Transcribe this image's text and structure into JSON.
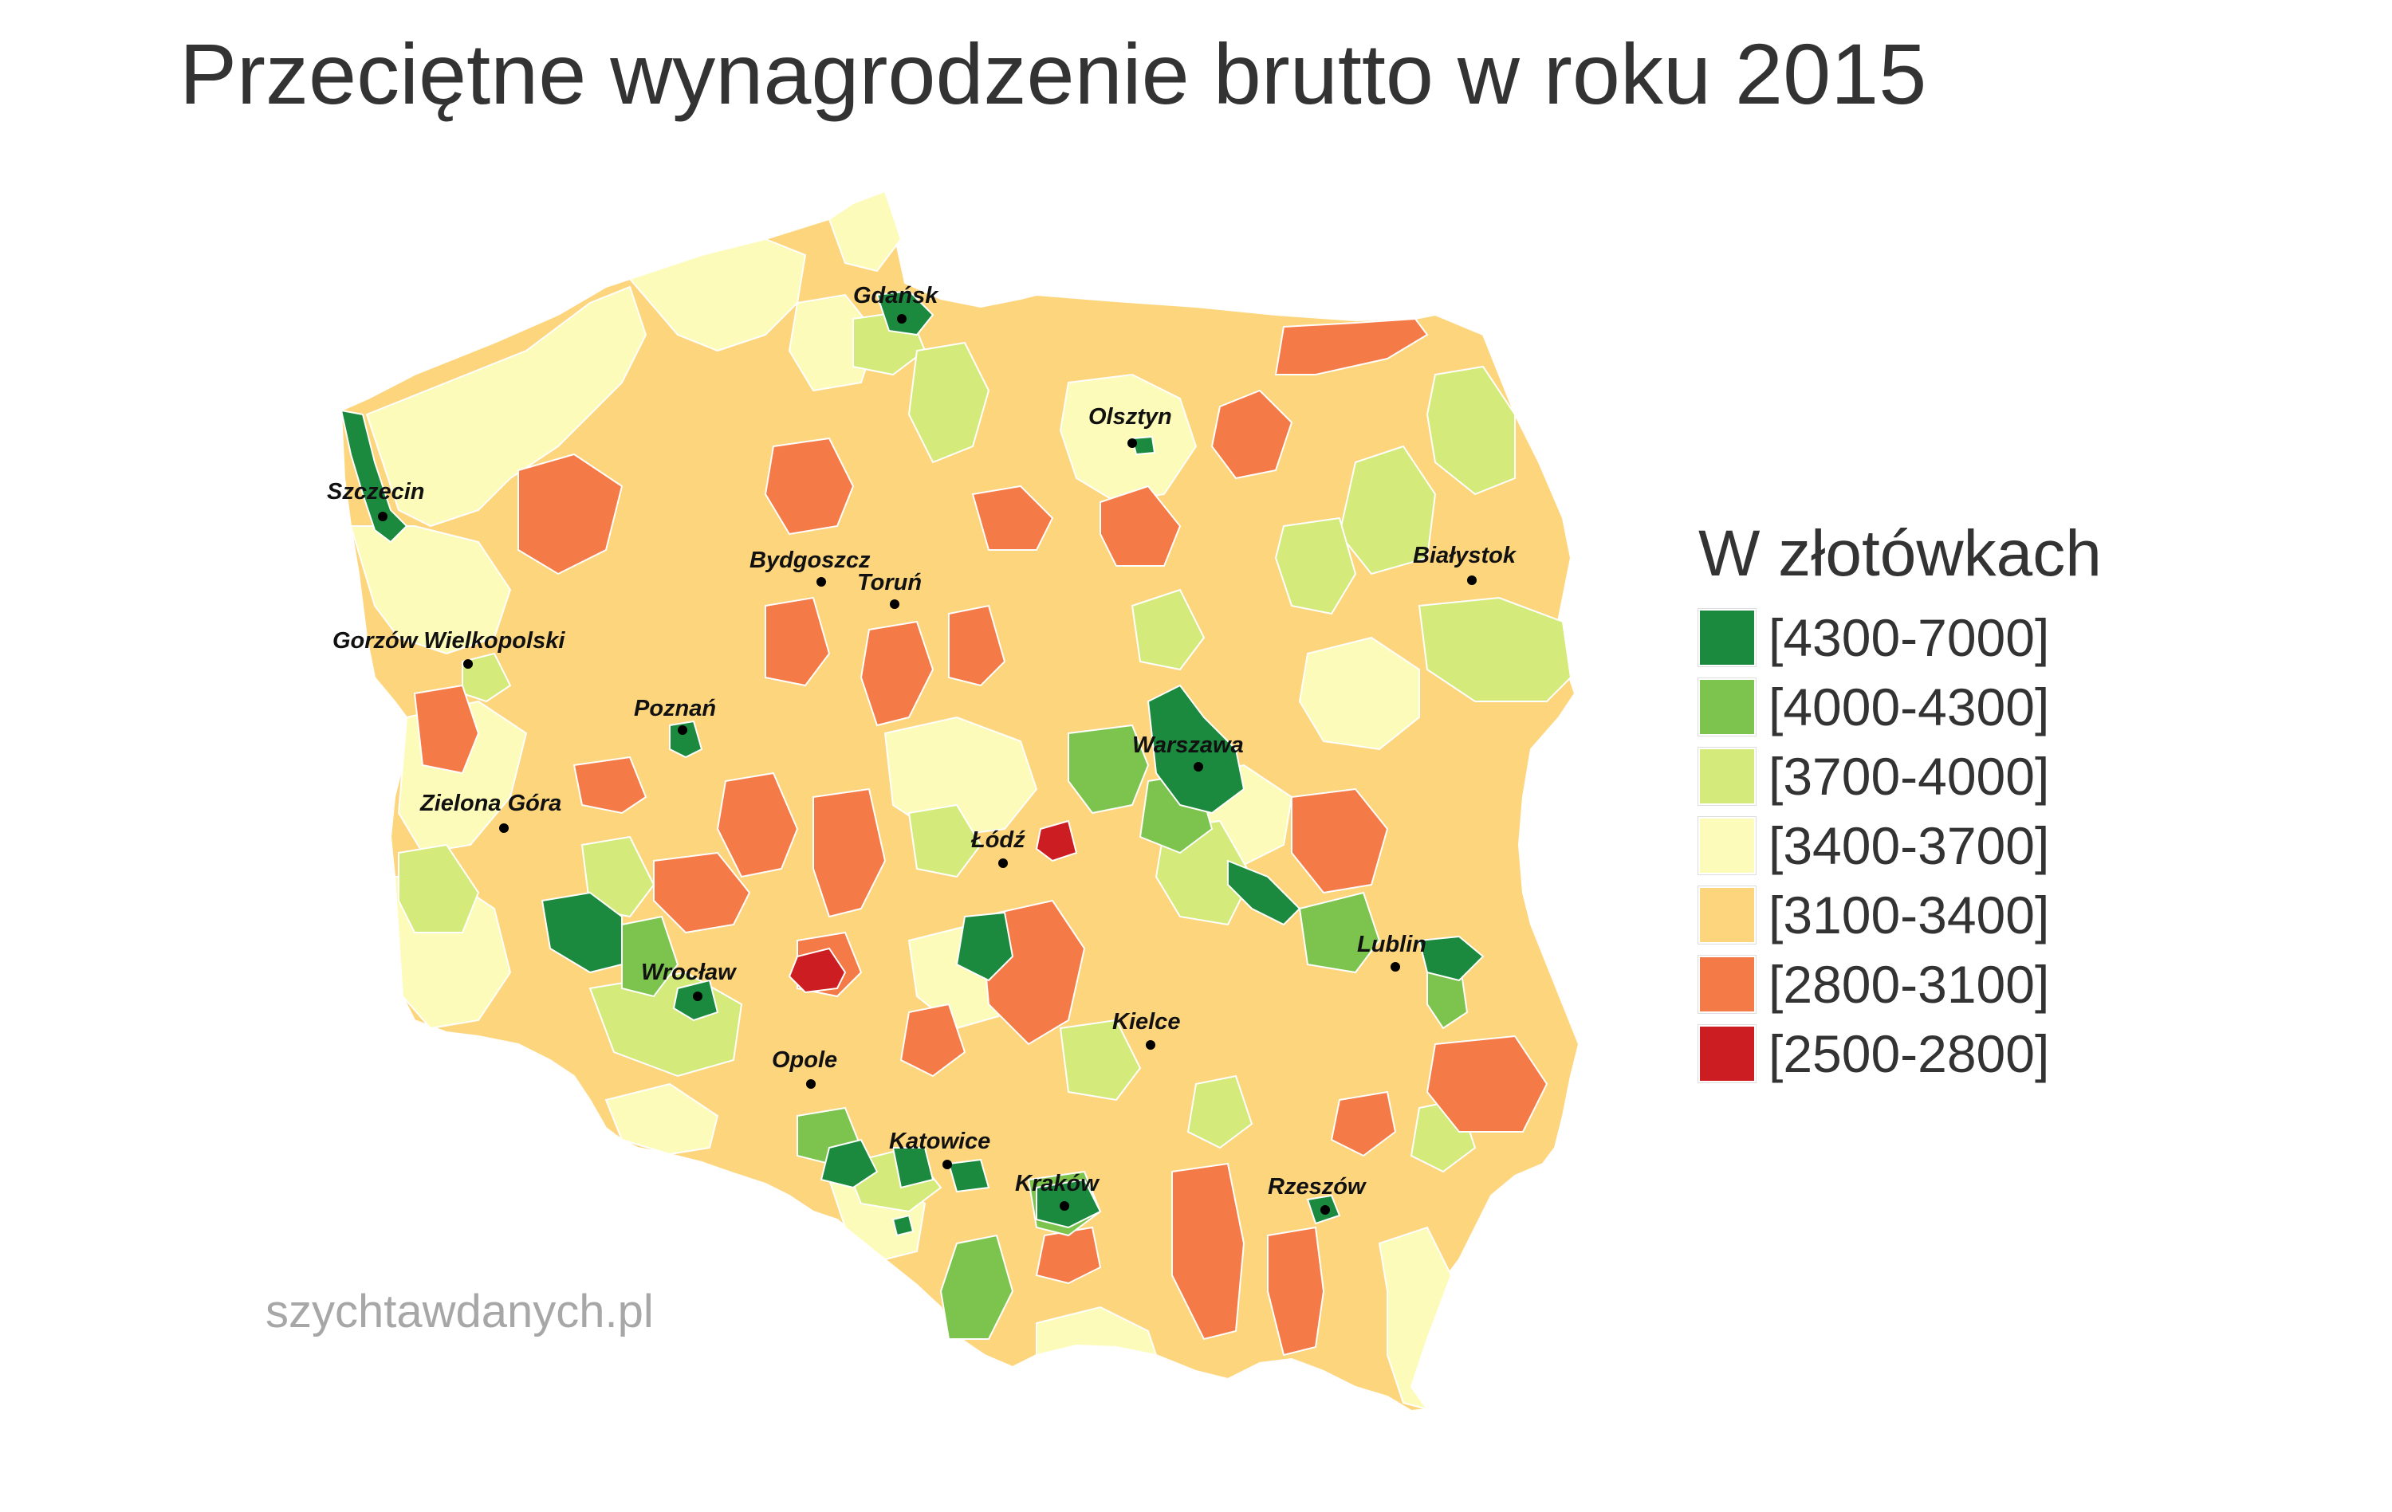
{
  "title": "Przeciętne wynagrodzenie brutto w roku 2015",
  "watermark": "szychtawdanych.pl",
  "legend": {
    "title": "W złotówkach",
    "items": [
      {
        "label": "[4300-7000]",
        "color": "#1b8a3f"
      },
      {
        "label": "[4000-4300]",
        "color": "#7cc44e"
      },
      {
        "label": "[3700-4000]",
        "color": "#d4ea7a"
      },
      {
        "label": "[3400-3700]",
        "color": "#fdfbb9"
      },
      {
        "label": "[3100-3400]",
        "color": "#fdd57d"
      },
      {
        "label": "[2800-3100]",
        "color": "#f47a47"
      },
      {
        "label": "[2500-2800]",
        "color": "#cc1e22"
      }
    ]
  },
  "cities": [
    {
      "name": "Gdańsk",
      "category": "[4300-7000]"
    },
    {
      "name": "Olsztyn",
      "category": "[4300-7000]"
    },
    {
      "name": "Szczecin",
      "category": "[4300-7000]"
    },
    {
      "name": "Białystok",
      "category": "[3100-3400]"
    },
    {
      "name": "Bydgoszcz",
      "category": "[3400-3700]"
    },
    {
      "name": "Toruń",
      "category": "[3400-3700]"
    },
    {
      "name": "Gorzów Wielkopolski",
      "category": "[3700-4000]"
    },
    {
      "name": "Poznań",
      "category": "[4300-7000]"
    },
    {
      "name": "Warszawa",
      "category": "[4300-7000]"
    },
    {
      "name": "Zielona Góra",
      "category": "[3700-4000]"
    },
    {
      "name": "Łódź",
      "category": "[4000-4300]"
    },
    {
      "name": "Lublin",
      "category": "[4300-7000]"
    },
    {
      "name": "Wrocław",
      "category": "[4300-7000]"
    },
    {
      "name": "Kielce",
      "category": "[3100-3400]"
    },
    {
      "name": "Opole",
      "category": "[3400-3700]"
    },
    {
      "name": "Katowice",
      "category": "[4300-7000]"
    },
    {
      "name": "Kraków",
      "category": "[4300-7000]"
    },
    {
      "name": "Rzeszów",
      "category": "[4300-7000]"
    }
  ]
}
